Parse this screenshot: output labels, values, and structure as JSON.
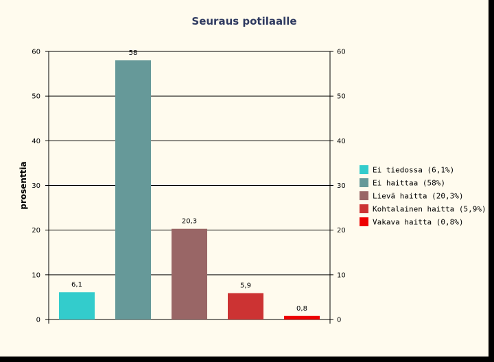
{
  "chart_data": {
    "type": "bar",
    "title": "Seuraus potilaalle",
    "xlabel": "",
    "ylabel": "prosenttia",
    "ylim": [
      0,
      60
    ],
    "yticks": [
      "0",
      "10",
      "20",
      "30",
      "40",
      "50",
      "60"
    ],
    "grid": true,
    "legend_position": "right",
    "categories": [
      "Ei tiedossa",
      "Ei haittaa",
      "Lievä haitta",
      "Kohtalainen haitta",
      "Vakava haitta"
    ],
    "values": [
      6.1,
      58,
      20.3,
      5.9,
      0.8
    ],
    "value_labels": [
      "6,1",
      "58",
      "20,3",
      "5,9",
      "0,8"
    ],
    "colors": [
      "#33cccc",
      "#669999",
      "#996666",
      "#cc3333",
      "#ee0000"
    ],
    "legend": [
      "Ei tiedossa (6,1%)",
      "Ei haittaa (58%)",
      "Lievä haitta (20,3%)",
      "Kohtalainen haitta (5,9%)",
      "Vakava haitta (0,8%)"
    ]
  }
}
